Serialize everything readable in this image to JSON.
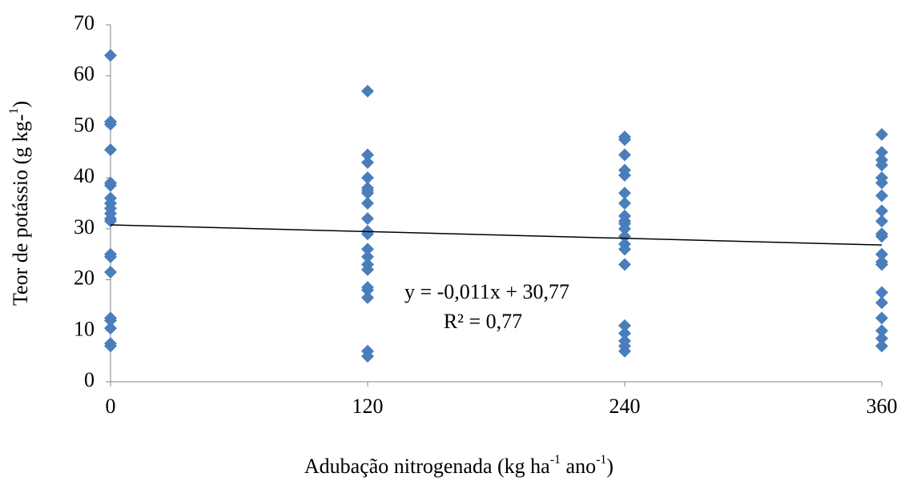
{
  "chart_data": {
    "type": "scatter",
    "y_label": [
      "Teor de potássio (g kg-",
      "1",
      ")"
    ],
    "x_label": [
      "Adubação nitrogenada (kg ha",
      "-1",
      " ano",
      "-1",
      ")"
    ],
    "xlim": [
      0,
      360
    ],
    "xticks": [
      0,
      120,
      240,
      360
    ],
    "ylim": [
      0,
      70
    ],
    "yticks": [
      0,
      10,
      20,
      30,
      40,
      50,
      60,
      70
    ],
    "series": [
      {
        "color": "#4a7ebb",
        "x": [
          0,
          0,
          0,
          0,
          0,
          0,
          0,
          0,
          0,
          0,
          0,
          0,
          0,
          0,
          0,
          0,
          0,
          0,
          0,
          0,
          120,
          120,
          120,
          120,
          120,
          120,
          120,
          120,
          120,
          120,
          120,
          120,
          120,
          120,
          120,
          120,
          120,
          120,
          120,
          120,
          240,
          240,
          240,
          240,
          240,
          240,
          240,
          240,
          240,
          240,
          240,
          240,
          240,
          240,
          240,
          240,
          240,
          240,
          240,
          240,
          360,
          360,
          360,
          360,
          360,
          360,
          360,
          360,
          360,
          360,
          360,
          360,
          360,
          360,
          360,
          360,
          360,
          360,
          360,
          360
        ],
        "values": [
          64,
          51,
          50.5,
          45.5,
          39,
          38.5,
          36,
          35,
          34,
          33,
          32,
          31.5,
          25,
          24.5,
          21.5,
          12.5,
          12,
          10.5,
          7.5,
          7,
          57,
          44.5,
          43,
          40,
          38,
          37.5,
          37,
          35,
          32,
          29.5,
          29,
          26,
          24.5,
          23,
          22,
          18.5,
          18,
          16.5,
          6,
          5,
          48,
          47.5,
          44.5,
          41.5,
          40.5,
          37,
          35,
          32.5,
          31.5,
          31,
          30,
          28.5,
          27,
          26,
          23,
          11,
          9.5,
          8,
          7,
          6,
          48.5,
          45,
          43.5,
          42.5,
          40,
          39,
          36.5,
          33.5,
          31.5,
          29,
          28.5,
          25,
          23.5,
          23,
          17.5,
          15.5,
          12.5,
          10,
          8.5,
          7
        ]
      }
    ],
    "trendline": {
      "x": [
        0,
        360
      ],
      "values": [
        30.77,
        26.81
      ],
      "color": "#000000"
    },
    "annotations": [
      "y = -0,011x + 30,77",
      "R² = 0,77"
    ]
  }
}
